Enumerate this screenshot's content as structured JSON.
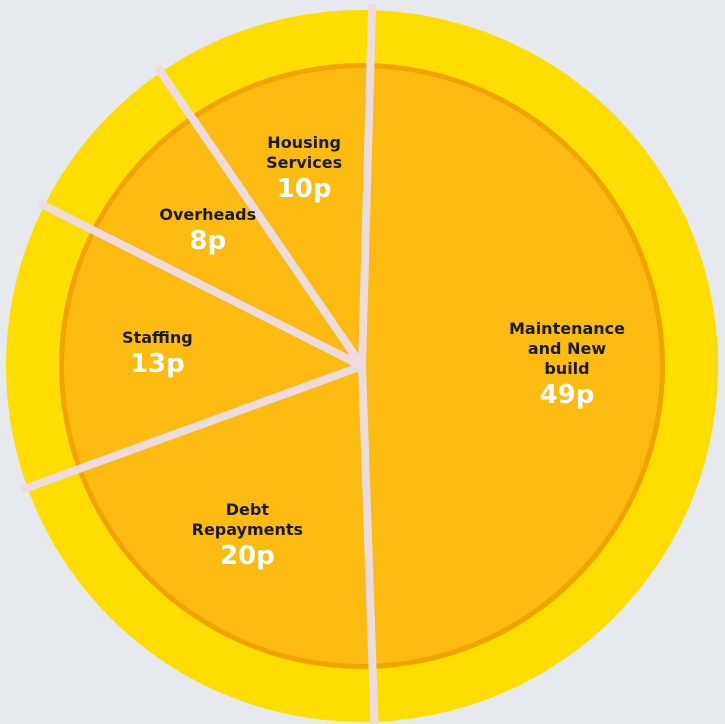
{
  "chart_data": {
    "type": "pie",
    "categories": [
      "Maintenance and New build",
      "Debt Repayments",
      "Staffing",
      "Overheads",
      "Housing Services"
    ],
    "values": [
      49,
      20,
      13,
      8,
      10
    ],
    "value_labels": [
      "49p",
      "20p",
      "13p",
      "8p",
      "10p"
    ],
    "color": "#fbbb11"
  }
}
